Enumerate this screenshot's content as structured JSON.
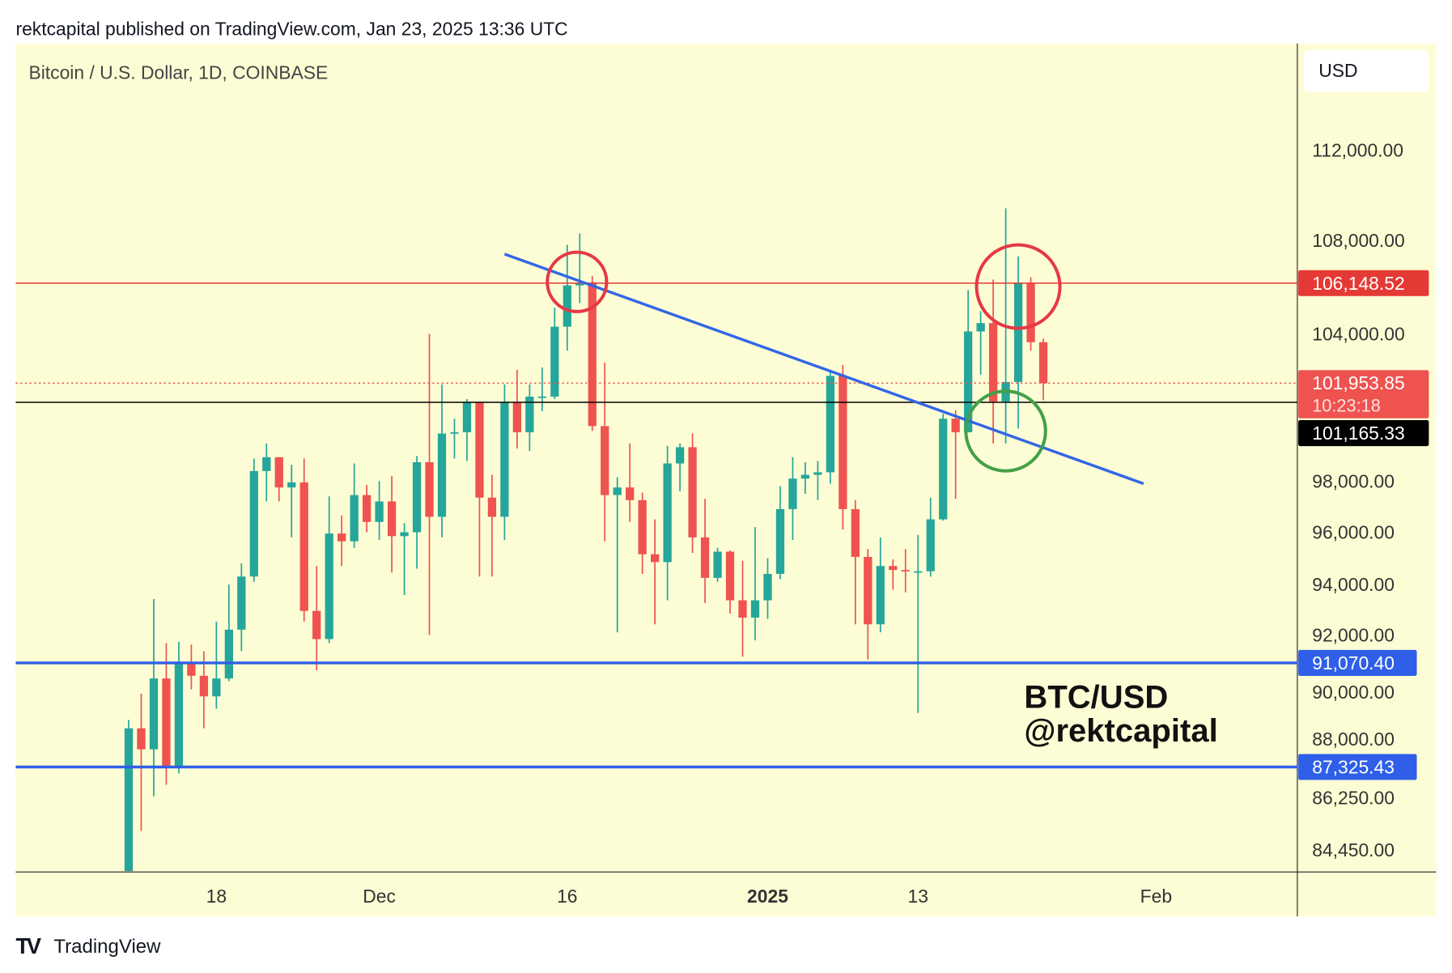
{
  "header": {
    "published": "rektcapital published on TradingView.com, Jan 23, 2025 13:36 UTC"
  },
  "footer": {
    "brand": "TradingView",
    "logo_text": "TV"
  },
  "colors": {
    "background": "#fdfdd5",
    "up": "#26a69a",
    "down": "#ef5350",
    "support": "#2f5fe8",
    "resistance": "#e53935",
    "trendline": "#3366e6",
    "circle_red": "#e53945",
    "circle_green": "#43a047"
  },
  "chart_data": {
    "type": "candlestick",
    "title": "Bitcoin / U.S. Dollar, 1D, COINBASE",
    "currency": "USD",
    "scale": "log",
    "ylim": [
      83500,
      115000
    ],
    "xlim": [
      "2024-11-02",
      "2025-02-12"
    ],
    "grid": false,
    "y_ticks": [
      "112,000.00",
      "108,000.00",
      "104,000.00",
      "98,000.00",
      "96,000.00",
      "94,000.00",
      "92,000.00",
      "90,000.00",
      "88,000.00",
      "86,250.00",
      "84,450.00"
    ],
    "y_tick_values": [
      112000,
      108000,
      104000,
      98000,
      96000,
      94000,
      92000,
      90000,
      88000,
      86250,
      84450
    ],
    "x_ticks": [
      {
        "label": "18",
        "date": "2024-11-18",
        "bold": false
      },
      {
        "label": "Dec",
        "date": "2024-12-01",
        "bold": false
      },
      {
        "label": "16",
        "date": "2024-12-16",
        "bold": false
      },
      {
        "label": "2025",
        "date": "2025-01-01",
        "bold": true
      },
      {
        "label": "13",
        "date": "2025-01-13",
        "bold": false
      },
      {
        "label": "Feb",
        "date": "2025-02-01",
        "bold": false
      }
    ],
    "ohlc": [
      [
        "2024-11-11",
        80370,
        89000,
        80200,
        88700
      ],
      [
        "2024-11-12",
        88700,
        89950,
        85100,
        87950
      ],
      [
        "2024-11-13",
        87950,
        93450,
        86300,
        90500
      ],
      [
        "2024-11-14",
        90500,
        91800,
        86700,
        87300
      ],
      [
        "2024-11-15",
        87300,
        91850,
        87100,
        91050
      ],
      [
        "2024-11-16",
        91050,
        91750,
        90100,
        90600
      ],
      [
        "2024-11-17",
        90600,
        91500,
        88700,
        89850
      ],
      [
        "2024-11-18",
        89850,
        92600,
        89400,
        90500
      ],
      [
        "2024-11-19",
        90500,
        94000,
        90400,
        92300
      ],
      [
        "2024-11-20",
        92300,
        94800,
        91500,
        94300
      ],
      [
        "2024-11-21",
        94300,
        98900,
        94100,
        98400
      ],
      [
        "2024-11-22",
        98400,
        99500,
        97200,
        98950
      ],
      [
        "2024-11-23",
        98950,
        98950,
        97200,
        97750
      ],
      [
        "2024-11-24",
        97750,
        98650,
        95800,
        97950
      ],
      [
        "2024-11-25",
        97950,
        98900,
        92600,
        93000
      ],
      [
        "2024-11-26",
        93000,
        94700,
        90800,
        91950
      ],
      [
        "2024-11-27",
        91950,
        97400,
        91800,
        95950
      ],
      [
        "2024-11-28",
        95950,
        96650,
        94700,
        95650
      ],
      [
        "2024-11-29",
        95650,
        98700,
        95400,
        97450
      ],
      [
        "2024-11-30",
        97450,
        97850,
        96000,
        96400
      ],
      [
        "2024-12-01",
        96400,
        98000,
        95700,
        97200
      ],
      [
        "2024-12-02",
        97200,
        98200,
        94450,
        95850
      ],
      [
        "2024-12-03",
        95850,
        96350,
        93600,
        96000
      ],
      [
        "2024-12-04",
        96000,
        99000,
        94600,
        98750
      ],
      [
        "2024-12-05",
        98750,
        104000,
        92100,
        96600
      ],
      [
        "2024-12-06",
        96600,
        101900,
        95800,
        99900
      ],
      [
        "2024-12-07",
        99900,
        100500,
        98900,
        99950
      ],
      [
        "2024-12-08",
        99950,
        101300,
        98800,
        101150
      ],
      [
        "2024-12-09",
        101150,
        101200,
        94300,
        97350
      ],
      [
        "2024-12-10",
        97350,
        98250,
        94300,
        96600
      ],
      [
        "2024-12-11",
        96600,
        101900,
        95700,
        101150
      ],
      [
        "2024-12-12",
        101150,
        102500,
        99300,
        99950
      ],
      [
        "2024-12-13",
        99950,
        101900,
        99200,
        101400
      ],
      [
        "2024-12-14",
        101400,
        102600,
        100800,
        101400
      ],
      [
        "2024-12-15",
        101400,
        105100,
        101300,
        104300
      ],
      [
        "2024-12-16",
        104300,
        107800,
        103300,
        106050
      ],
      [
        "2024-12-17",
        106050,
        108300,
        105300,
        106150
      ],
      [
        "2024-12-18",
        106150,
        106450,
        100000,
        100200
      ],
      [
        "2024-12-19",
        100200,
        102800,
        95650,
        97450
      ],
      [
        "2024-12-20",
        97450,
        98150,
        92200,
        97750
      ],
      [
        "2024-12-21",
        97750,
        99500,
        96400,
        97250
      ],
      [
        "2024-12-22",
        97250,
        97550,
        94400,
        95150
      ],
      [
        "2024-12-23",
        95150,
        96500,
        92500,
        94850
      ],
      [
        "2024-12-24",
        94850,
        99400,
        93400,
        98700
      ],
      [
        "2024-12-25",
        98700,
        99500,
        97600,
        99350
      ],
      [
        "2024-12-26",
        99350,
        99900,
        95200,
        95800
      ],
      [
        "2024-12-27",
        95800,
        97300,
        93300,
        94250
      ],
      [
        "2024-12-28",
        94250,
        95400,
        94100,
        95250
      ],
      [
        "2024-12-29",
        95250,
        95300,
        92900,
        93400
      ],
      [
        "2024-12-30",
        93400,
        94900,
        91300,
        92750
      ],
      [
        "2024-12-31",
        92750,
        96200,
        91900,
        93400
      ],
      [
        "2025-01-01",
        93400,
        95000,
        92700,
        94400
      ],
      [
        "2025-01-02",
        94400,
        97800,
        94200,
        96900
      ],
      [
        "2025-01-03",
        96900,
        98950,
        95700,
        98100
      ],
      [
        "2025-01-04",
        98100,
        98750,
        97500,
        98250
      ],
      [
        "2025-01-05",
        98250,
        98800,
        97250,
        98350
      ],
      [
        "2025-01-06",
        98350,
        102500,
        97900,
        102250
      ],
      [
        "2025-01-07",
        102250,
        102700,
        96100,
        96900
      ],
      [
        "2025-01-08",
        96900,
        97250,
        92500,
        95050
      ],
      [
        "2025-01-09",
        95050,
        95350,
        91200,
        92500
      ],
      [
        "2025-01-10",
        92500,
        95800,
        92200,
        94700
      ],
      [
        "2025-01-11",
        94700,
        94950,
        93800,
        94550
      ],
      [
        "2025-01-12",
        94550,
        95350,
        93700,
        94500
      ],
      [
        "2025-01-13",
        94500,
        95900,
        89250,
        94500
      ],
      [
        "2025-01-14",
        94500,
        97350,
        94300,
        96500
      ],
      [
        "2025-01-15",
        96500,
        100700,
        96450,
        100500
      ],
      [
        "2025-01-16",
        100500,
        100850,
        97300,
        99950
      ],
      [
        "2025-01-17",
        99950,
        105850,
        99950,
        104100
      ],
      [
        "2025-01-18",
        104100,
        104950,
        102300,
        104450
      ],
      [
        "2025-01-19",
        104450,
        106300,
        99500,
        101200
      ],
      [
        "2025-01-20",
        101200,
        109400,
        99500,
        102000
      ],
      [
        "2025-01-21",
        102000,
        107300,
        100100,
        106150
      ],
      [
        "2025-01-22",
        106150,
        106400,
        103300,
        103650
      ],
      [
        "2025-01-23",
        103650,
        103800,
        101250,
        101950
      ]
    ],
    "horizontal_lines": [
      {
        "price": 106148.52,
        "label": "106,148.52",
        "style": "solid",
        "color": "#e53935"
      },
      {
        "price": 101953.85,
        "label": "101,953.85",
        "countdown": "10:23:18",
        "style": "dotted",
        "color": "#ef5350"
      },
      {
        "price": 101165.33,
        "label": "101,165.33",
        "style": "solid",
        "color": "#000000"
      },
      {
        "price": 91070.4,
        "label": "91,070.40",
        "style": "thick",
        "color": "#2f5fe8"
      },
      {
        "price": 87325.43,
        "label": "87,325.43",
        "style": "thick",
        "color": "#2f5fe8"
      }
    ],
    "trendline": {
      "from": [
        "2024-12-11",
        107400
      ],
      "to": [
        "2025-01-31",
        97900
      ]
    },
    "annotations": [
      {
        "type": "circle",
        "date": "2024-12-17",
        "price": 106200,
        "color": "red"
      },
      {
        "type": "circle",
        "date": "2025-01-21",
        "price": 106000,
        "color": "red"
      },
      {
        "type": "circle",
        "date": "2025-01-20",
        "price": 100000,
        "color": "green"
      }
    ],
    "watermark": [
      "BTC/USD",
      "@rektcapital"
    ]
  }
}
